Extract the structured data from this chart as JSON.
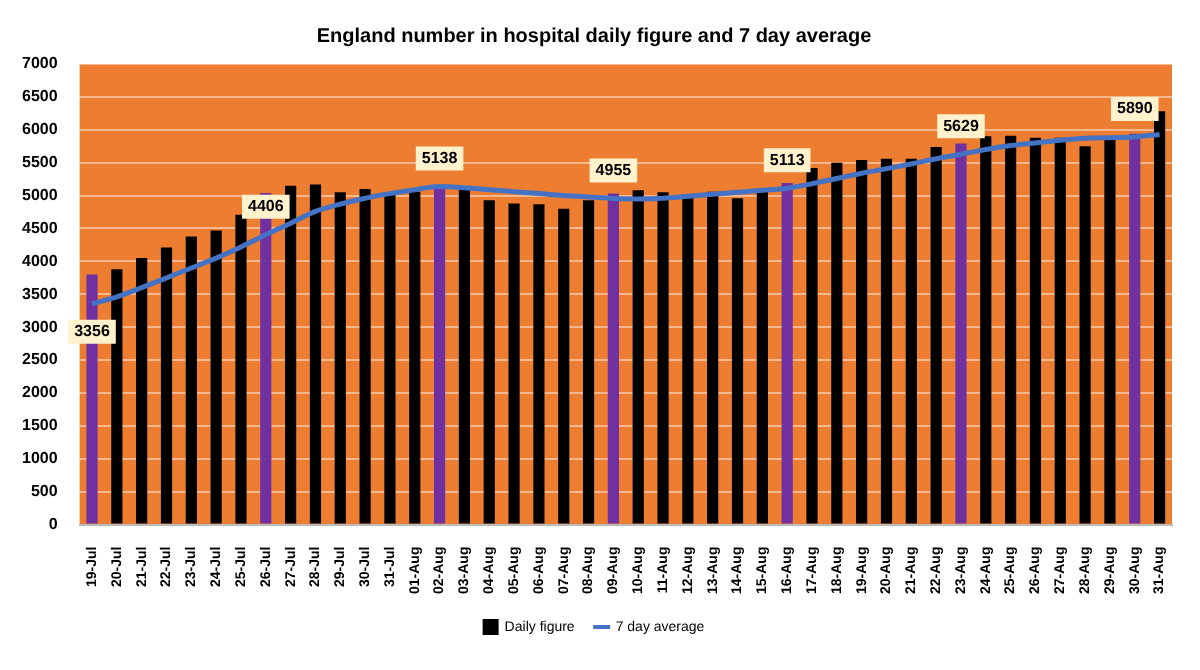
{
  "chart_data": {
    "type": "bar",
    "title": "England number in hospital daily figure and 7 day average",
    "categories": [
      "19-Jul",
      "20-Jul",
      "21-Jul",
      "22-Jul",
      "23-Jul",
      "24-Jul",
      "25-Jul",
      "26-Jul",
      "27-Jul",
      "28-Jul",
      "29-Jul",
      "30-Jul",
      "31-Jul",
      "01-Aug",
      "02-Aug",
      "03-Aug",
      "04-Aug",
      "05-Aug",
      "06-Aug",
      "07-Aug",
      "08-Aug",
      "09-Aug",
      "10-Aug",
      "11-Aug",
      "12-Aug",
      "13-Aug",
      "14-Aug",
      "15-Aug",
      "16-Aug",
      "17-Aug",
      "18-Aug",
      "19-Aug",
      "20-Aug",
      "21-Aug",
      "22-Aug",
      "23-Aug",
      "24-Aug",
      "25-Aug",
      "26-Aug",
      "27-Aug",
      "28-Aug",
      "29-Aug",
      "30-Aug",
      "31-Aug"
    ],
    "series": [
      {
        "name": "Daily figure",
        "color": "#000000",
        "colors": [
          "#7030a0",
          "#000000",
          "#000000",
          "#000000",
          "#000000",
          "#000000",
          "#000000",
          "#7030a0",
          "#000000",
          "#000000",
          "#000000",
          "#000000",
          "#000000",
          "#000000",
          "#7030a0",
          "#000000",
          "#000000",
          "#000000",
          "#000000",
          "#000000",
          "#000000",
          "#7030a0",
          "#000000",
          "#000000",
          "#000000",
          "#000000",
          "#000000",
          "#000000",
          "#7030a0",
          "#000000",
          "#000000",
          "#000000",
          "#000000",
          "#000000",
          "#000000",
          "#7030a0",
          "#000000",
          "#000000",
          "#000000",
          "#000000",
          "#000000",
          "#000000",
          "#7030a0",
          "#000000"
        ],
        "values": [
          3800,
          3880,
          4050,
          4210,
          4380,
          4470,
          4710,
          5040,
          5150,
          5170,
          5050,
          5100,
          5020,
          5060,
          5160,
          5090,
          4930,
          4880,
          4870,
          4800,
          4930,
          5030,
          5080,
          5050,
          5020,
          5060,
          4960,
          5100,
          5190,
          5420,
          5500,
          5540,
          5560,
          5560,
          5740,
          5790,
          5900,
          5910,
          5880,
          5880,
          5750,
          5850,
          5940,
          6280
        ]
      },
      {
        "name": "7 day average",
        "type": "line",
        "color": "#4472c4",
        "values": [
          3356,
          3460,
          3600,
          3750,
          3900,
          4050,
          4220,
          4406,
          4580,
          4760,
          4870,
          4960,
          5030,
          5090,
          5138,
          5120,
          5090,
          5060,
          5030,
          5000,
          4980,
          4955,
          4950,
          4960,
          4990,
          5020,
          5050,
          5080,
          5113,
          5180,
          5260,
          5340,
          5410,
          5480,
          5560,
          5629,
          5700,
          5760,
          5800,
          5840,
          5870,
          5880,
          5890,
          5930
        ],
        "value_labels": [
          "3356",
          null,
          null,
          null,
          null,
          null,
          null,
          "4406",
          null,
          null,
          null,
          null,
          null,
          null,
          "5138",
          null,
          null,
          null,
          null,
          null,
          null,
          "4955",
          null,
          null,
          null,
          null,
          null,
          null,
          "5113",
          null,
          null,
          null,
          null,
          null,
          null,
          "5629",
          null,
          null,
          null,
          null,
          null,
          null,
          "5890",
          null
        ]
      }
    ],
    "ylim": [
      0,
      7000
    ],
    "yticks": [
      0,
      500,
      1000,
      1500,
      2000,
      2500,
      3000,
      3500,
      4000,
      4500,
      5000,
      5500,
      6000,
      6500,
      7000
    ],
    "grid": "y",
    "legend": "bottom",
    "marker": "none",
    "line_style": "solid"
  }
}
